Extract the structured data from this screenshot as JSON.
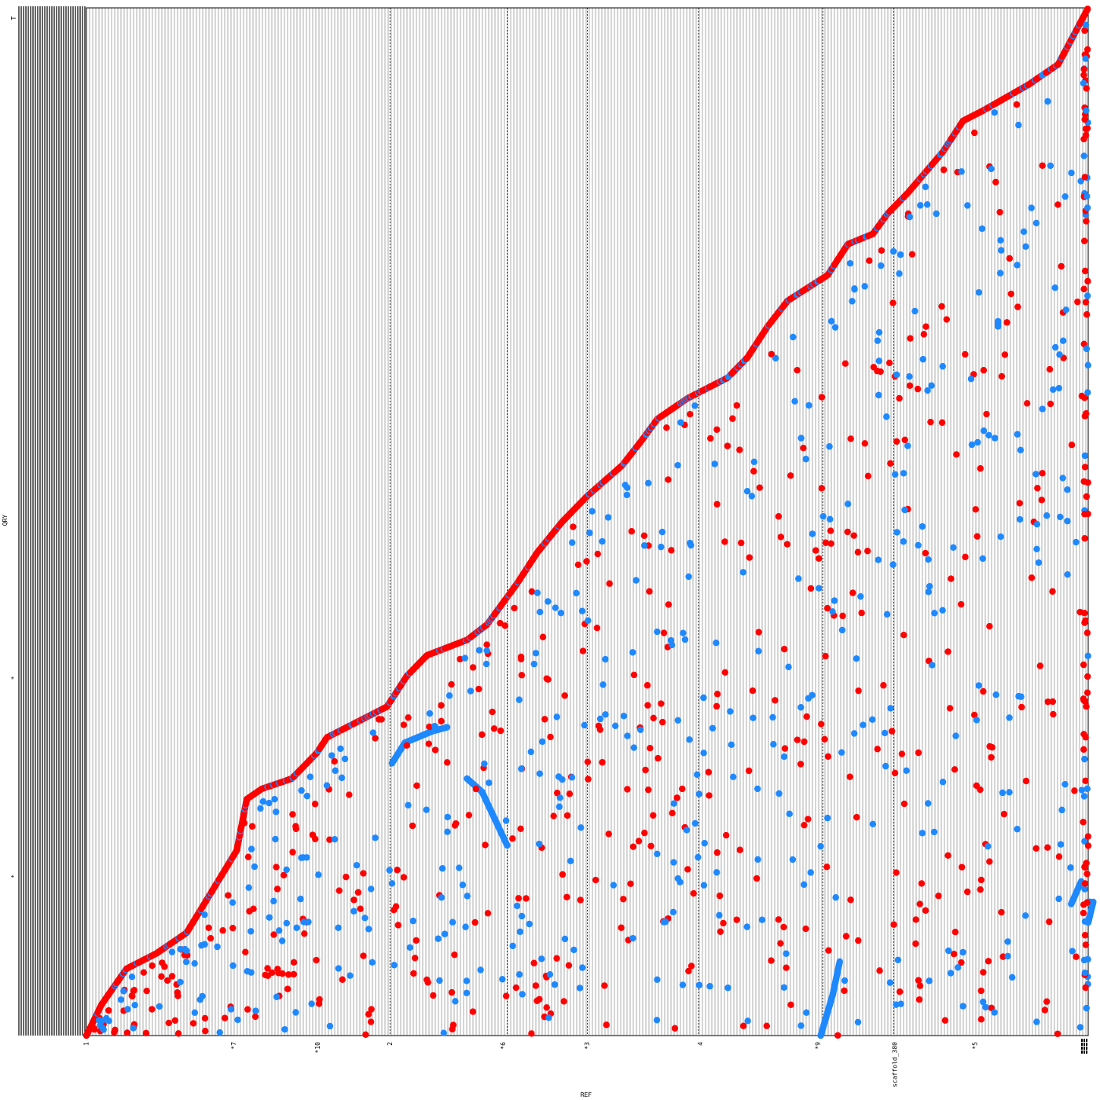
{
  "chart_data": {
    "type": "scatter",
    "plot_kind": "genome-dotplot",
    "xlabel": "REF",
    "ylabel": "QRY",
    "xlim": [
      0,
      1000
    ],
    "ylim": [
      0,
      1000
    ],
    "colors": {
      "forward": "#ff0000",
      "reverse": "#1e88ff",
      "boundary": "#000000",
      "grid": "#888888",
      "background": "#ffffff"
    },
    "ref_sequences": [
      {
        "label": "1",
        "pos": 2
      },
      {
        "label": "*7",
        "pos": 149
      },
      {
        "label": "*10",
        "pos": 233
      },
      {
        "label": "2",
        "pos": 305
      },
      {
        "label": "*6",
        "pos": 418
      },
      {
        "label": "*3",
        "pos": 502
      },
      {
        "label": "4",
        "pos": 615
      },
      {
        "label": "*9",
        "pos": 732
      },
      {
        "label": "scaffold_380",
        "pos": 809
      },
      {
        "label": "*5",
        "pos": 889
      }
    ],
    "ref_boundaries": [
      0,
      303,
      420,
      500,
      611,
      735,
      806,
      1000
    ],
    "qry_labels": [
      {
        "label": "T",
        "pos": 990
      },
      {
        "label": "*",
        "pos": 348
      },
      {
        "label": "*",
        "pos": 155
      }
    ],
    "series": [
      {
        "strand": "forward",
        "points": [
          [
            0,
            0
          ],
          [
            15,
            30
          ],
          [
            40,
            65
          ],
          [
            70,
            80
          ],
          [
            100,
            100
          ],
          [
            150,
            180
          ],
          [
            160,
            230
          ],
          [
            175,
            240
          ],
          [
            205,
            250
          ],
          [
            230,
            275
          ],
          [
            240,
            290
          ],
          [
            270,
            305
          ],
          [
            300,
            320
          ],
          [
            320,
            350
          ],
          [
            340,
            370
          ],
          [
            380,
            385
          ],
          [
            400,
            400
          ],
          [
            430,
            440
          ],
          [
            450,
            470
          ],
          [
            475,
            500
          ],
          [
            500,
            525
          ],
          [
            535,
            555
          ],
          [
            555,
            580
          ],
          [
            570,
            600
          ],
          [
            600,
            620
          ],
          [
            640,
            640
          ],
          [
            660,
            660
          ],
          [
            680,
            690
          ],
          [
            700,
            715
          ],
          [
            740,
            740
          ],
          [
            760,
            770
          ],
          [
            785,
            780
          ],
          [
            800,
            800
          ],
          [
            820,
            820
          ],
          [
            855,
            860
          ],
          [
            875,
            890
          ],
          [
            895,
            900
          ],
          [
            940,
            925
          ],
          [
            970,
            945
          ],
          [
            1000,
            1000
          ]
        ],
        "note_segments": [
          [
            [
              780,
              252
            ],
            [
              820,
              248
            ]
          ],
          [
            [
              415,
              300
            ],
            [
              430,
              305
            ]
          ]
        ]
      },
      {
        "strand": "reverse",
        "points": [
          [
            305,
            265
          ],
          [
            318,
            285
          ],
          [
            345,
            296
          ],
          [
            360,
            300
          ]
        ],
        "segments": [
          [
            [
              380,
              250
            ],
            [
              395,
              237
            ],
            [
              420,
              185
            ]
          ],
          [
            [
              733,
              0
            ],
            [
              745,
              40
            ],
            [
              752,
              72
            ]
          ],
          [
            [
              1000,
              130
            ],
            [
              1002,
              130
            ]
          ],
          [
            [
              983,
              128
            ],
            [
              993,
              150
            ]
          ],
          [
            [
              910,
              695
            ],
            [
              910,
              690
            ]
          ],
          [
            [
              1000,
              110
            ],
            [
              1005,
              130
            ]
          ]
        ]
      }
    ],
    "scatter_counts": {
      "forward": 480,
      "reverse": 430
    }
  }
}
